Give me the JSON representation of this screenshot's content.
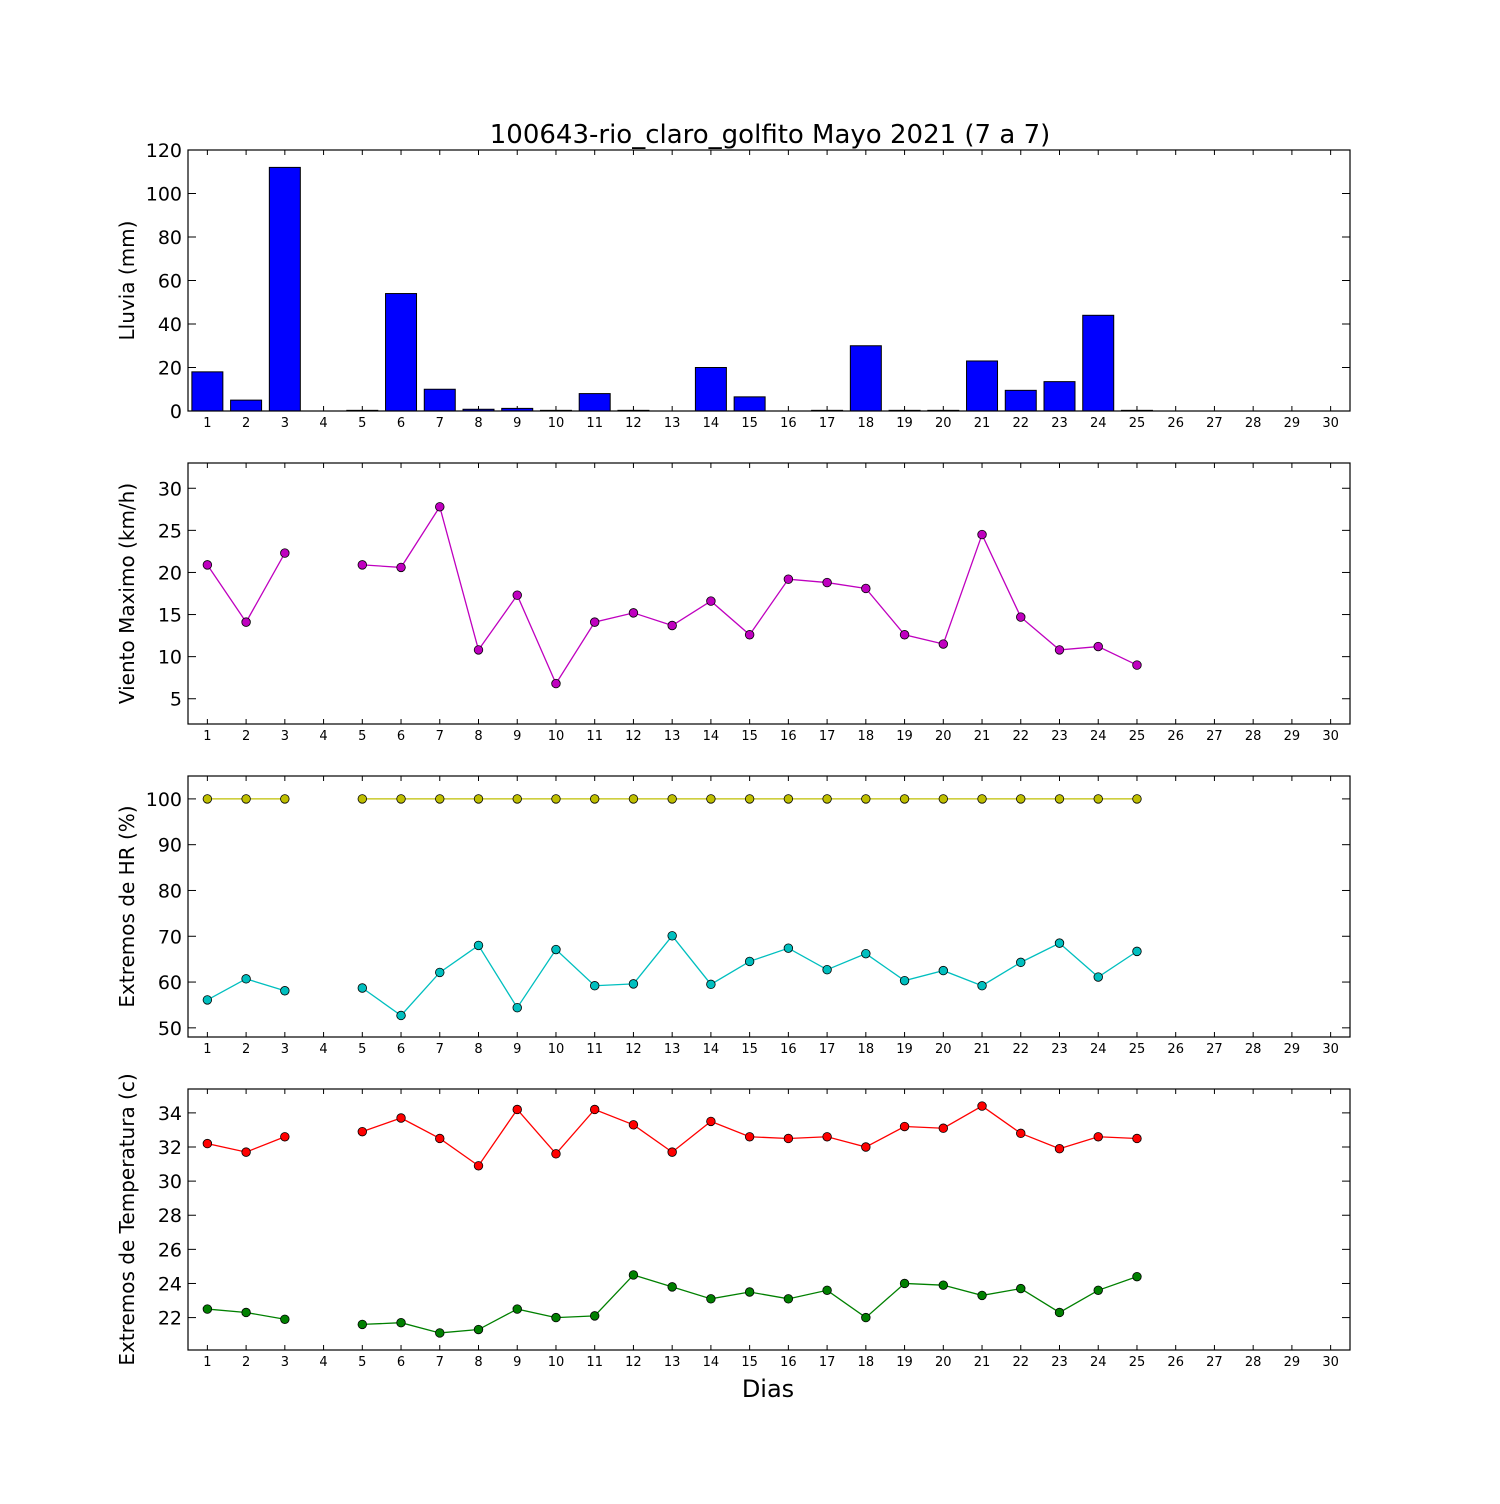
{
  "title": "100643-rio_claro_golfito Mayo 2021  (7 a 7)",
  "xlabel": "Dias",
  "colors": {
    "rain_bar": "#0000ff",
    "wind": "#bf00bf",
    "hr_max": "#bfbf00",
    "hr_min": "#00bfbf",
    "temp_max": "#ff0000",
    "temp_min": "#008000"
  },
  "chart_data": [
    {
      "type": "bar",
      "ylabel": "Lluvia (mm)",
      "ylim": [
        0,
        120
      ],
      "yticks": [
        "0",
        "20",
        "40",
        "60",
        "80",
        "100",
        "120"
      ],
      "categories": [
        "1",
        "2",
        "3",
        "4",
        "5",
        "6",
        "7",
        "8",
        "9",
        "10",
        "11",
        "12",
        "13",
        "14",
        "15",
        "16",
        "17",
        "18",
        "19",
        "20",
        "21",
        "22",
        "23",
        "24",
        "25",
        "26",
        "27",
        "28",
        "29",
        "30"
      ],
      "values": [
        18,
        5,
        112,
        0,
        0.3,
        54,
        10,
        0.8,
        1.2,
        0.3,
        8,
        0.3,
        0,
        20,
        6.5,
        0,
        0.3,
        30,
        0.3,
        0.3,
        23,
        9.5,
        13.5,
        44,
        0.3,
        0,
        0,
        0,
        0,
        0
      ]
    },
    {
      "type": "line",
      "ylabel": "Viento Maximo (km/h)",
      "ylim": [
        2,
        33
      ],
      "yticks": [
        "5",
        "10",
        "15",
        "20",
        "25",
        "30"
      ],
      "categories": [
        "1",
        "2",
        "3",
        "4",
        "5",
        "6",
        "7",
        "8",
        "9",
        "10",
        "11",
        "12",
        "13",
        "14",
        "15",
        "16",
        "17",
        "18",
        "19",
        "20",
        "21",
        "22",
        "23",
        "24",
        "25",
        "26",
        "27",
        "28",
        "29",
        "30"
      ],
      "series": [
        {
          "values": [
            20.9,
            14.1,
            22.3,
            null,
            20.9,
            20.6,
            27.8,
            10.8,
            17.3,
            6.8,
            14.1,
            15.2,
            13.7,
            16.6,
            12.6,
            19.2,
            18.8,
            18.1,
            12.6,
            11.5,
            24.5,
            14.7,
            10.8,
            11.2,
            9.0,
            null,
            null,
            null,
            null,
            null
          ]
        }
      ]
    },
    {
      "type": "line",
      "ylabel": "Extremos de HR (%)",
      "ylim": [
        48,
        105
      ],
      "yticks": [
        "50",
        "60",
        "70",
        "80",
        "90",
        "100"
      ],
      "categories": [
        "1",
        "2",
        "3",
        "4",
        "5",
        "6",
        "7",
        "8",
        "9",
        "10",
        "11",
        "12",
        "13",
        "14",
        "15",
        "16",
        "17",
        "18",
        "19",
        "20",
        "21",
        "22",
        "23",
        "24",
        "25",
        "26",
        "27",
        "28",
        "29",
        "30"
      ],
      "series": [
        {
          "values": [
            100,
            100,
            100,
            null,
            100,
            100,
            100,
            100,
            100,
            100,
            100,
            100,
            100,
            100,
            100,
            100,
            100,
            100,
            100,
            100,
            100,
            100,
            100,
            100,
            100,
            null,
            null,
            null,
            null,
            null
          ]
        },
        {
          "values": [
            56.1,
            60.7,
            58.1,
            null,
            58.7,
            52.7,
            62.1,
            68.0,
            54.4,
            67.1,
            59.2,
            59.6,
            70.1,
            59.5,
            64.5,
            67.4,
            62.7,
            66.2,
            60.3,
            62.5,
            59.2,
            64.3,
            68.5,
            61.1,
            66.7,
            null,
            null,
            null,
            null,
            null
          ]
        }
      ]
    },
    {
      "type": "line",
      "ylabel": "Extremos de Temperatura (c)",
      "ylim": [
        20.1,
        35.4
      ],
      "yticks": [
        "22",
        "24",
        "26",
        "28",
        "30",
        "32",
        "34"
      ],
      "categories": [
        "1",
        "2",
        "3",
        "4",
        "5",
        "6",
        "7",
        "8",
        "9",
        "10",
        "11",
        "12",
        "13",
        "14",
        "15",
        "16",
        "17",
        "18",
        "19",
        "20",
        "21",
        "22",
        "23",
        "24",
        "25",
        "26",
        "27",
        "28",
        "29",
        "30"
      ],
      "series": [
        {
          "values": [
            32.2,
            31.7,
            32.6,
            null,
            32.9,
            33.7,
            32.5,
            30.9,
            34.2,
            31.6,
            34.2,
            33.3,
            31.7,
            33.5,
            32.6,
            32.5,
            32.6,
            32.0,
            33.2,
            33.1,
            34.4,
            32.8,
            31.9,
            32.6,
            32.5,
            null,
            null,
            null,
            null,
            null
          ]
        },
        {
          "values": [
            22.5,
            22.3,
            21.9,
            null,
            21.6,
            21.7,
            21.1,
            21.3,
            22.5,
            22.0,
            22.1,
            24.5,
            23.8,
            23.1,
            23.5,
            23.1,
            23.6,
            22.0,
            24.0,
            23.9,
            23.3,
            23.7,
            22.3,
            23.6,
            24.4,
            null,
            null,
            null,
            null,
            null
          ]
        }
      ]
    }
  ]
}
